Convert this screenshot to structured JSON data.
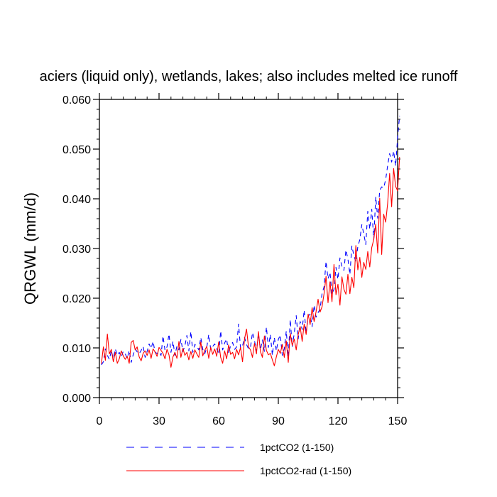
{
  "chart_data": {
    "type": "line",
    "title": "aciers (liquid only), wetlands, lakes; also includes melted ice runoff",
    "xlabel": "",
    "ylabel": "QRGWL  (mm/d)",
    "xlim": [
      0,
      150
    ],
    "ylim": [
      0.0,
      0.06
    ],
    "xticks": [
      0,
      30,
      60,
      90,
      120,
      150
    ],
    "xtick_labels": [
      "0",
      "30",
      "60",
      "90",
      "120",
      "150"
    ],
    "yticks": [
      0.0,
      0.01,
      0.02,
      0.03,
      0.04,
      0.05,
      0.06
    ],
    "ytick_labels": [
      "0.000",
      "0.010",
      "0.020",
      "0.030",
      "0.040",
      "0.050",
      "0.060"
    ],
    "grid": false,
    "legend_position": "bottom",
    "series": [
      {
        "name": "1pctCO2 (1-150)",
        "color": "#0000ff",
        "line_style": "dashed",
        "values": [
          0.0066,
          0.0072,
          0.0098,
          0.0085,
          0.0077,
          0.0094,
          0.0079,
          0.0098,
          0.0085,
          0.0091,
          0.0082,
          0.0093,
          0.0088,
          0.0079,
          0.0095,
          0.0071,
          0.0086,
          0.0098,
          0.0092,
          0.0088,
          0.0095,
          0.0103,
          0.0081,
          0.0093,
          0.0108,
          0.0099,
          0.0113,
          0.0091,
          0.0089,
          0.0092,
          0.0085,
          0.0124,
          0.0095,
          0.0102,
          0.0128,
          0.0091,
          0.0113,
          0.0085,
          0.0104,
          0.0096,
          0.0117,
          0.0093,
          0.0104,
          0.0125,
          0.0094,
          0.0133,
          0.0091,
          0.0107,
          0.0103,
          0.0096,
          0.0121,
          0.0097,
          0.0088,
          0.0101,
          0.0127,
          0.0097,
          0.0103,
          0.0108,
          0.0099,
          0.0087,
          0.0134,
          0.0096,
          0.011,
          0.0118,
          0.0089,
          0.0105,
          0.0111,
          0.0097,
          0.0102,
          0.0148,
          0.0099,
          0.0104,
          0.0121,
          0.0107,
          0.0098,
          0.0101,
          0.0131,
          0.0115,
          0.0093,
          0.0129,
          0.0096,
          0.0116,
          0.0093,
          0.0142,
          0.0101,
          0.0127,
          0.0085,
          0.0121,
          0.0094,
          0.0117,
          0.0126,
          0.0085,
          0.0098,
          0.0134,
          0.0082,
          0.0157,
          0.0103,
          0.0129,
          0.0165,
          0.0118,
          0.0153,
          0.0137,
          0.0176,
          0.0129,
          0.0164,
          0.0168,
          0.0143,
          0.0186,
          0.0162,
          0.0171,
          0.0178,
          0.0209,
          0.0223,
          0.0274,
          0.0239,
          0.0252,
          0.0208,
          0.0218,
          0.0262,
          0.0238,
          0.0281,
          0.0264,
          0.0256,
          0.0297,
          0.0279,
          0.0248,
          0.0305,
          0.0286,
          0.0273,
          0.0304,
          0.0318,
          0.0348,
          0.0329,
          0.0308,
          0.0375,
          0.0339,
          0.0379,
          0.0318,
          0.0404,
          0.0361,
          0.0417,
          0.0424,
          0.0422,
          0.0439,
          0.0467,
          0.0491,
          0.0474,
          0.0496,
          0.0466,
          0.0523,
          0.0567
        ]
      },
      {
        "name": "1pctCO2-rad (1-150)",
        "color": "#ff0000",
        "line_style": "solid",
        "values": [
          0.0068,
          0.0102,
          0.0075,
          0.0128,
          0.0088,
          0.0097,
          0.0072,
          0.0091,
          0.0069,
          0.0078,
          0.0094,
          0.0084,
          0.0077,
          0.0083,
          0.0069,
          0.0111,
          0.0115,
          0.0096,
          0.0102,
          0.0082,
          0.0074,
          0.0089,
          0.0094,
          0.0085,
          0.0096,
          0.0079,
          0.0098,
          0.0092,
          0.0083,
          0.0101,
          0.0095,
          0.0089,
          0.0078,
          0.0097,
          0.0086,
          0.0061,
          0.0082,
          0.0091,
          0.0079,
          0.0113,
          0.0081,
          0.0099,
          0.0085,
          0.0091,
          0.0076,
          0.0093,
          0.0079,
          0.0096,
          0.0088,
          0.0081,
          0.0112,
          0.0084,
          0.0095,
          0.0103,
          0.0079,
          0.0101,
          0.0087,
          0.0098,
          0.0083,
          0.0112,
          0.0081,
          0.0069,
          0.0094,
          0.0078,
          0.0106,
          0.0087,
          0.0091,
          0.0078,
          0.0097,
          0.0086,
          0.0101,
          0.0072,
          0.0118,
          0.0138,
          0.0102,
          0.0096,
          0.0081,
          0.0109,
          0.0088,
          0.0133,
          0.0093,
          0.0081,
          0.0124,
          0.0095,
          0.0086,
          0.0089,
          0.0076,
          0.0064,
          0.0082,
          0.0097,
          0.0089,
          0.0107,
          0.0081,
          0.0114,
          0.0071,
          0.0129,
          0.0105,
          0.0118,
          0.0096,
          0.0127,
          0.0143,
          0.0113,
          0.0148,
          0.0127,
          0.0168,
          0.0147,
          0.0181,
          0.0153,
          0.0173,
          0.0198,
          0.0172,
          0.0183,
          0.0209,
          0.0244,
          0.0191,
          0.0233,
          0.0193,
          0.0268,
          0.0207,
          0.0228,
          0.0186,
          0.0243,
          0.0218,
          0.0208,
          0.0248,
          0.0209,
          0.0242,
          0.0221,
          0.0306,
          0.0257,
          0.0282,
          0.0242,
          0.0272,
          0.0258,
          0.0294,
          0.0263,
          0.0302,
          0.0318,
          0.0349,
          0.0291,
          0.0401,
          0.0288,
          0.0369,
          0.0353,
          0.0391,
          0.0451,
          0.0384,
          0.0461,
          0.0425,
          0.0416,
          0.0484
        ]
      }
    ]
  }
}
